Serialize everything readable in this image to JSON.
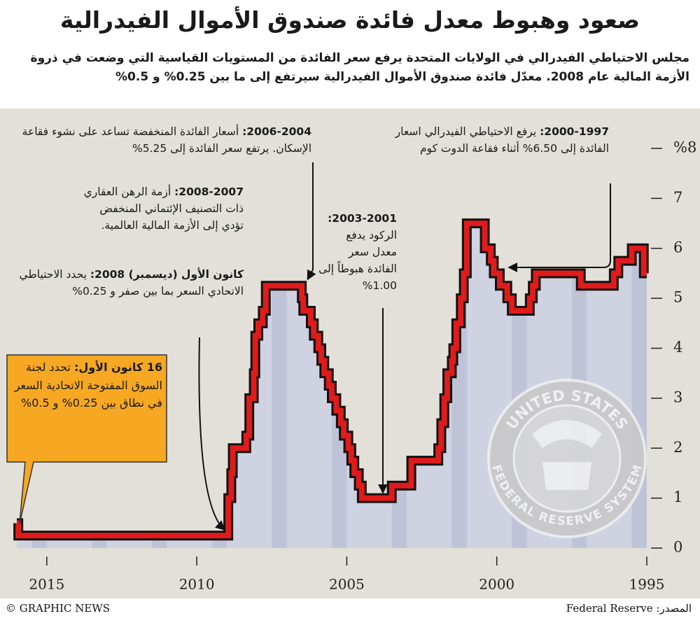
{
  "chart_data": {
    "type": "step-line",
    "title": "صعود وهبوط معدل فائدة صندوق الأموال الفيدرالية",
    "subtitle": "مجلس الاحتياطي الفيدرالي في الولايات المتحدة يرفع سعر الفائدة من المستويات القياسية التي وضعت في ذروة الأزمة المالية عام 2008. معدّل فائدة صندوق الأموال الفيدرالية سيرتفع إلى ما بين 0.25% و 0.5%",
    "x": [
      1995.0,
      1995.1,
      1995.5,
      1995.95,
      1996.1,
      1997.2,
      1998.7,
      1998.8,
      1998.9,
      1999.5,
      1999.65,
      1999.9,
      2000.1,
      2000.2,
      2000.4,
      2001.0,
      2001.1,
      2001.2,
      2001.35,
      2001.45,
      2001.5,
      2001.65,
      2001.75,
      2001.85,
      2001.95,
      2002.85,
      2003.5,
      2004.5,
      2004.6,
      2004.75,
      2004.85,
      2004.95,
      2005.1,
      2005.2,
      2005.35,
      2005.5,
      2005.6,
      2005.75,
      2005.85,
      2005.95,
      2006.1,
      2006.2,
      2006.45,
      2006.5,
      2007.7,
      2007.8,
      2007.95,
      2008.05,
      2008.1,
      2008.25,
      2008.35,
      2008.8,
      2008.85,
      2008.95,
      2015.95
    ],
    "values": [
      5.5,
      6.0,
      5.75,
      5.5,
      5.25,
      5.5,
      5.25,
      5.0,
      4.75,
      5.0,
      5.25,
      5.5,
      5.75,
      6.0,
      6.5,
      5.5,
      5.0,
      4.5,
      4.0,
      3.75,
      3.5,
      3.0,
      2.5,
      2.0,
      1.75,
      1.25,
      1.0,
      1.25,
      1.5,
      1.75,
      2.0,
      2.25,
      2.5,
      2.75,
      3.0,
      3.25,
      3.5,
      3.75,
      4.0,
      4.25,
      4.5,
      4.75,
      5.0,
      5.25,
      4.75,
      4.5,
      4.25,
      3.5,
      3.0,
      2.25,
      2.0,
      1.5,
      1.0,
      0.25,
      0.5
    ],
    "color": "#e01b1b",
    "xlim": [
      2016,
      1995
    ],
    "xticks": [
      2015,
      2010,
      2005,
      2000,
      1995
    ],
    "ylim": [
      0,
      8
    ],
    "yticks": [
      0,
      1,
      2,
      3,
      4,
      5,
      6,
      7,
      {
        "value": 8,
        "label": "%8"
      }
    ],
    "annotations": [
      {
        "heading": "2000-1997:",
        "text": "يرفع الاحتياطي الفيدرالي اسعار الفائدة إلى 6.50% أثناء فقاعة الدوت كوم"
      },
      {
        "heading": "2006-2004:",
        "text": "أسعار الفائدة المنخفضة تساعد على نشوء فقاعة الإسكان. يرتفع سعر الفائدة إلى 5.25%"
      },
      {
        "heading": "2008-2007:",
        "text": "أزمة الرهن العقاري ذات التصنيف الإئتماني المنخفض تؤدي إلى الأزمة المالية العالمية."
      },
      {
        "heading": "2003-2001:",
        "text": "الركود يدفع معدل سعر الفائدة هبوطاً إلى 1.00%"
      },
      {
        "heading": "كانون الأول (ديسمبر) 2008:",
        "text": "يحدد الاحتياطي الاتحادي السعر بما بين صفر و 0.25%"
      },
      {
        "heading": "16 كانون الأول:",
        "text": "تحدد لجنة السوق المفتوحة الاتحادية السعر في نطاق بين 0.25% و 0.5%"
      }
    ],
    "seal": {
      "top": "UNITED STATES",
      "bottom": "FEDERAL RESERVE SYSTEM"
    }
  },
  "footer": {
    "credit": "© GRAPHIC NEWS",
    "source": "المصدر: Federal Reserve"
  }
}
